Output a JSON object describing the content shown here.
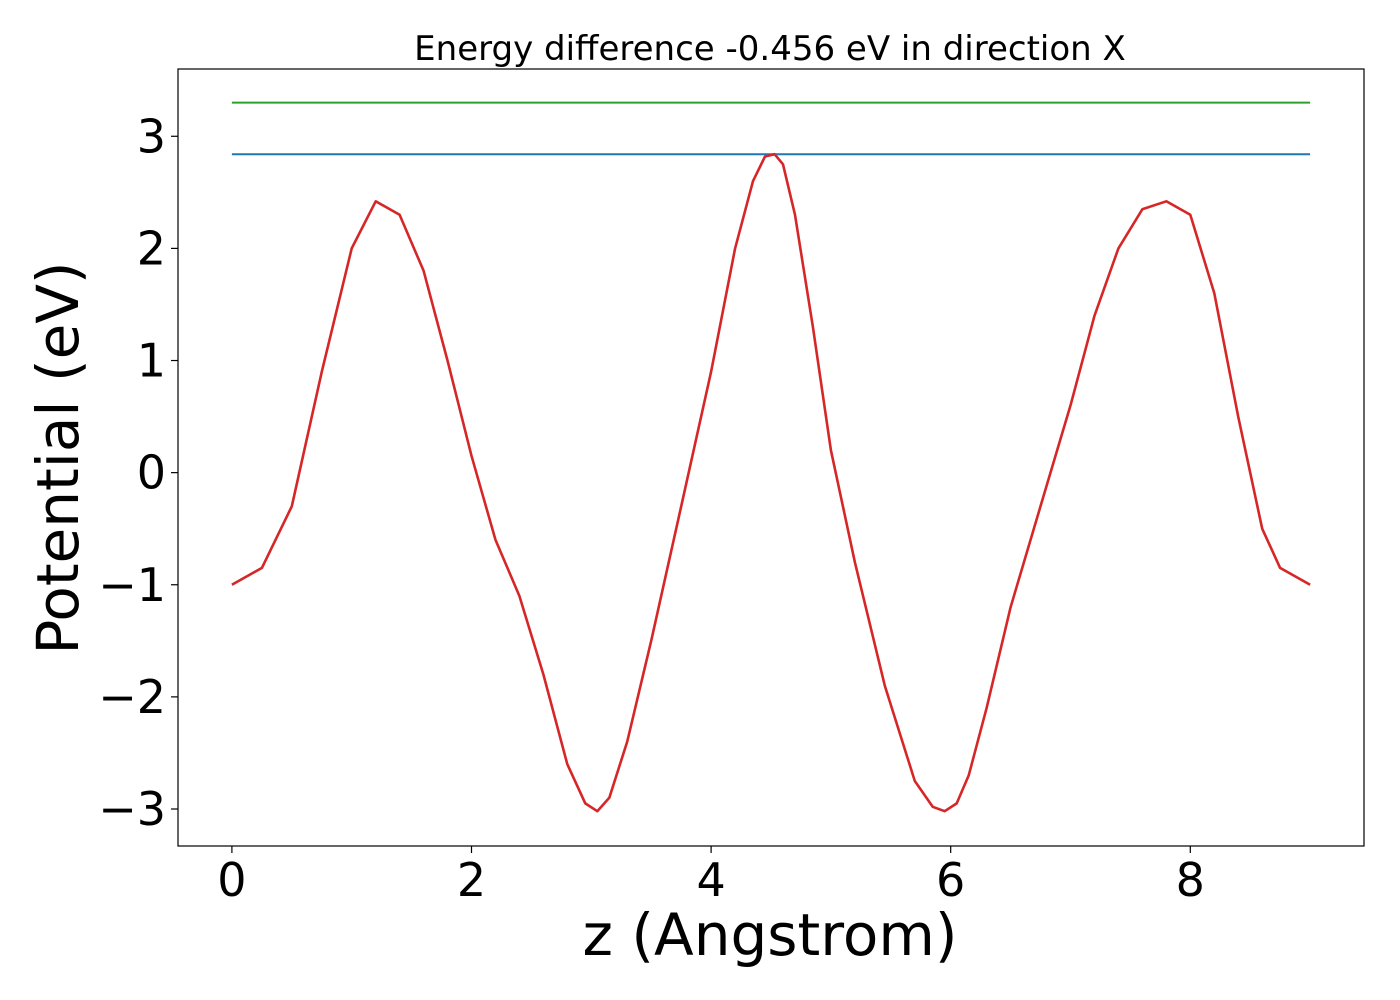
{
  "chart_data": {
    "type": "line",
    "title": "Energy difference -0.456 eV in direction X",
    "xlabel": "z (Angstrom)",
    "ylabel": "Potential (eV)",
    "xlim": [
      -0.45,
      9.45
    ],
    "ylim": [
      -3.33,
      3.6
    ],
    "grid": false,
    "xticks": [
      0,
      2,
      4,
      6,
      8
    ],
    "xtick_labels": [
      "0",
      "2",
      "4",
      "6",
      "8"
    ],
    "yticks": [
      -3,
      -2,
      -1,
      0,
      1,
      2,
      3
    ],
    "ytick_labels": [
      "−3",
      "−2",
      "−1",
      "0",
      "1",
      "2",
      "3"
    ],
    "series": [
      {
        "color": "#2ca02c",
        "x": [
          0,
          9
        ],
        "y": [
          3.3,
          3.3
        ]
      },
      {
        "color": "#1f77b4",
        "x": [
          0,
          9
        ],
        "y": [
          2.84,
          2.84
        ]
      },
      {
        "color": "#d62728",
        "x": [
          0,
          0.25,
          0.5,
          0.75,
          1.0,
          1.2,
          1.4,
          1.6,
          1.8,
          2.0,
          2.2,
          2.4,
          2.6,
          2.8,
          2.95,
          3.05,
          3.15,
          3.3,
          3.5,
          3.75,
          4.0,
          4.2,
          4.35,
          4.45,
          4.53,
          4.6,
          4.7,
          4.85,
          5.0,
          5.2,
          5.45,
          5.7,
          5.85,
          5.95,
          6.05,
          6.15,
          6.3,
          6.5,
          6.75,
          7.0,
          7.2,
          7.4,
          7.6,
          7.8,
          8.0,
          8.2,
          8.4,
          8.6,
          8.75,
          9.0
        ],
        "y": [
          -1.0,
          -0.85,
          -0.3,
          0.9,
          2.0,
          2.42,
          2.3,
          1.8,
          1.0,
          0.15,
          -0.6,
          -1.1,
          -1.8,
          -2.6,
          -2.95,
          -3.02,
          -2.9,
          -2.4,
          -1.5,
          -0.3,
          0.9,
          2.0,
          2.6,
          2.82,
          2.84,
          2.75,
          2.3,
          1.3,
          0.2,
          -0.8,
          -1.9,
          -2.75,
          -2.98,
          -3.02,
          -2.95,
          -2.7,
          -2.1,
          -1.2,
          -0.3,
          0.6,
          1.4,
          2.0,
          2.35,
          2.42,
          2.3,
          1.6,
          0.5,
          -0.5,
          -0.85,
          -1.0
        ]
      }
    ]
  }
}
